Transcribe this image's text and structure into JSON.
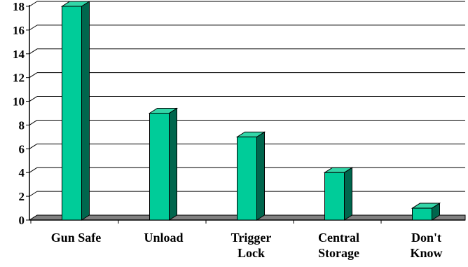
{
  "chart_data": {
    "type": "bar",
    "categories": [
      [
        "Gun Safe"
      ],
      [
        "Unload"
      ],
      [
        "Trigger",
        "Lock"
      ],
      [
        "Central",
        "Storage"
      ],
      [
        "Don't",
        "Know"
      ]
    ],
    "values": [
      18,
      9,
      7,
      4,
      1
    ],
    "ylim": [
      0,
      18
    ],
    "yticks": [
      0,
      2,
      4,
      6,
      8,
      10,
      12,
      14,
      16,
      18
    ],
    "grid": true,
    "bar_color": "#00cc99",
    "bar_side_color": "#00664d",
    "bar_top_color": "#33d6a8",
    "floor_color": "#808080"
  }
}
